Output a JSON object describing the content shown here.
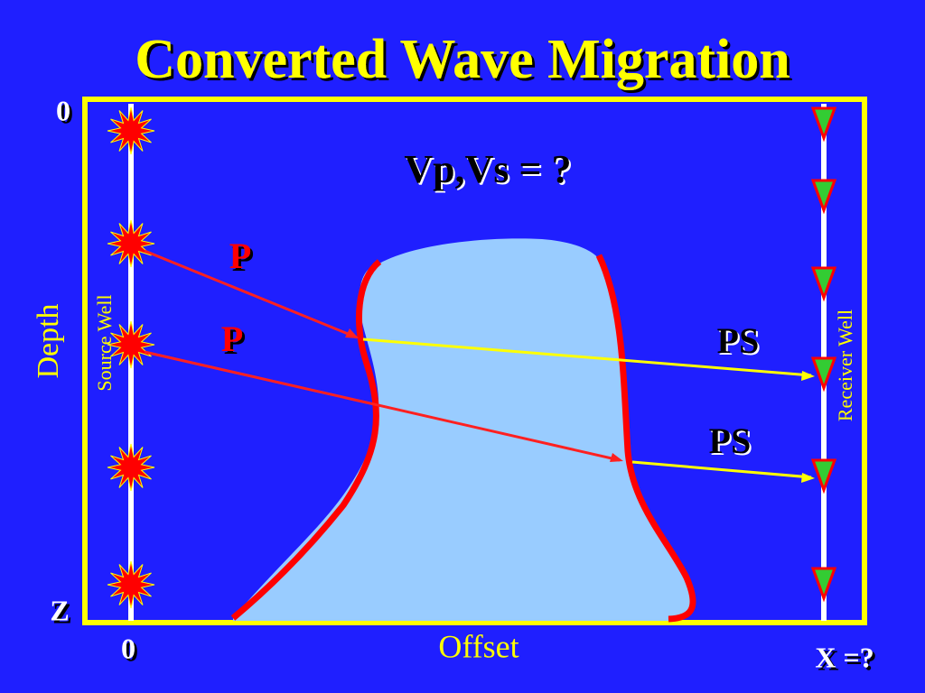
{
  "title": "Converted Wave Migration",
  "axes": {
    "depth_top": "0",
    "depth_bottom": "Z",
    "depth_label": "Depth",
    "offset_origin": "0",
    "offset_label": "Offset",
    "offset_end": "X =?"
  },
  "wells": {
    "source": "Source Well",
    "receiver": "Receiver Well"
  },
  "velocity_label": "Vp,Vs = ?",
  "rays": {
    "p_upper": "P",
    "p_lower": "P",
    "ps_upper": "PS",
    "ps_lower": "PS"
  }
}
